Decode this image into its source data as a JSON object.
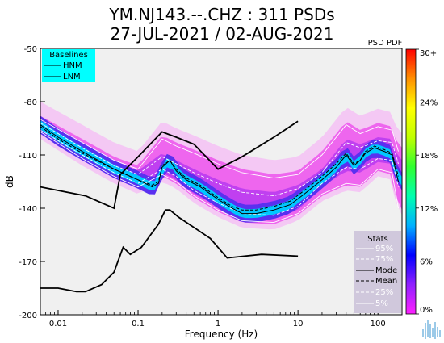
{
  "header": {
    "title": "YM.NJ143.--.CHZ : 311 PSDs",
    "subtitle": "27-JUL-2021 / 02-AUG-2021"
  },
  "chart_data": {
    "type": "line",
    "title": "YM.NJ143.--.CHZ : 311 PSDs",
    "subtitle": "27-JUL-2021 / 02-AUG-2021",
    "xlabel": "Frequency (Hz)",
    "ylabel": "dB",
    "xscale": "log",
    "xlim": [
      0.006,
      200
    ],
    "ylim": [
      -200,
      -50
    ],
    "xticks": [
      0.01,
      0.1,
      1,
      10,
      100
    ],
    "xtick_labels": [
      "0.01",
      "0.1",
      "1",
      "10",
      "100"
    ],
    "yticks": [
      -200,
      -170,
      -140,
      -110,
      -80,
      -50
    ],
    "ytick_labels": [
      "-200",
      "-170",
      "-140",
      "-110",
      "-80",
      "-50"
    ],
    "colorbar": {
      "title": "PSD PDF",
      "tick_labels": [
        "0%",
        "6%",
        "12%",
        "18%",
        "24%",
        "30+"
      ],
      "ticks": [
        0,
        6,
        12,
        18,
        24,
        30
      ],
      "colors": [
        "#ff20ff",
        "#9020ff",
        "#0000ff",
        "#00b0ff",
        "#00ffb0",
        "#30ff30",
        "#c0ff00",
        "#ffff00",
        "#ff9000",
        "#ff0000"
      ]
    },
    "baselines_legend": {
      "title": "Baselines",
      "entries": [
        "HNM",
        "LNM"
      ],
      "color": "#00ffff"
    },
    "stats_legend": {
      "title": "Stats",
      "entries": [
        "95%",
        "75%",
        "Mode",
        "Mean",
        "25%",
        "5%"
      ],
      "color": "#d0c8dc"
    },
    "series": [
      {
        "name": "HNM",
        "color": "#000000",
        "x": [
          0.006,
          0.01,
          0.022,
          0.05,
          0.06,
          0.1,
          0.2,
          0.3,
          0.5,
          1.0,
          2.0,
          5.0,
          10.0
        ],
        "y": [
          -128,
          -130,
          -133,
          -140,
          -121,
          -111,
          -97,
          -100,
          -104,
          -118,
          -111,
          -100,
          -91
        ]
      },
      {
        "name": "LNM",
        "color": "#000000",
        "x": [
          0.006,
          0.01,
          0.017,
          0.022,
          0.035,
          0.05,
          0.065,
          0.08,
          0.11,
          0.18,
          0.22,
          0.25,
          0.32,
          0.8,
          1.3,
          3.5,
          10.0
        ],
        "y": [
          -185,
          -185,
          -187,
          -187,
          -183,
          -176,
          -162,
          -166,
          -162,
          -149,
          -141,
          -141,
          -145,
          -157,
          -168,
          -166,
          -167
        ]
      },
      {
        "name": "Mode",
        "color": "#000000",
        "x": [
          0.006,
          0.01,
          0.02,
          0.05,
          0.1,
          0.15,
          0.18,
          0.2,
          0.25,
          0.3,
          0.4,
          0.6,
          1,
          1.5,
          2,
          3,
          5,
          8,
          12,
          20,
          30,
          40,
          50,
          60,
          70,
          90,
          120,
          150,
          180
        ],
        "y": [
          -93,
          -100,
          -108,
          -118,
          -124,
          -128,
          -126,
          -117,
          -113,
          -119,
          -124,
          -128,
          -135,
          -140,
          -143,
          -143,
          -141,
          -138,
          -132,
          -124,
          -117,
          -110,
          -116,
          -113,
          -109,
          -106,
          -108,
          -110,
          -125
        ]
      },
      {
        "name": "Mean",
        "color": "#000000",
        "x": [
          0.006,
          0.01,
          0.02,
          0.05,
          0.1,
          0.15,
          0.18,
          0.2,
          0.25,
          0.3,
          0.4,
          0.6,
          1,
          1.5,
          2,
          3,
          5,
          8,
          12,
          20,
          30,
          40,
          50,
          60,
          70,
          90,
          120,
          150,
          180
        ],
        "y": [
          -94,
          -101,
          -109,
          -118,
          -124,
          -127,
          -125,
          -116,
          -113,
          -118,
          -123,
          -127,
          -134,
          -139,
          -141,
          -141,
          -139,
          -136,
          -130,
          -122,
          -115,
          -109,
          -115,
          -113,
          -108,
          -105,
          -107,
          -109,
          -122
        ]
      },
      {
        "name": "95%",
        "color": "#ffffff",
        "x": [
          0.006,
          0.02,
          0.05,
          0.1,
          0.2,
          0.3,
          0.5,
          1,
          2,
          5,
          10,
          20,
          40,
          60,
          100,
          150,
          180
        ],
        "y": [
          -90,
          -103,
          -113,
          -118,
          -101,
          -105,
          -109,
          -115,
          -120,
          -123,
          -121,
          -110,
          -93,
          -98,
          -94,
          -96,
          -108
        ]
      },
      {
        "name": "75%",
        "color": "#ffffff",
        "x": [
          0.006,
          0.02,
          0.05,
          0.1,
          0.2,
          0.3,
          0.5,
          1,
          2,
          5,
          10,
          20,
          40,
          60,
          100,
          150,
          180
        ],
        "y": [
          -92,
          -106,
          -116,
          -121,
          -111,
          -115,
          -120,
          -126,
          -131,
          -133,
          -129,
          -120,
          -103,
          -106,
          -102,
          -103,
          -115
        ]
      },
      {
        "name": "25%",
        "color": "#ffffff",
        "x": [
          0.006,
          0.02,
          0.05,
          0.1,
          0.2,
          0.3,
          0.5,
          1,
          2,
          5,
          10,
          20,
          40,
          60,
          100,
          150,
          180
        ],
        "y": [
          -96,
          -110,
          -120,
          -126,
          -118,
          -122,
          -130,
          -137,
          -143,
          -144,
          -139,
          -126,
          -117,
          -118,
          -112,
          -113,
          -128
        ]
      },
      {
        "name": "5%",
        "color": "#ffffff",
        "x": [
          0.006,
          0.02,
          0.05,
          0.1,
          0.2,
          0.3,
          0.5,
          1,
          2,
          5,
          10,
          20,
          40,
          60,
          100,
          150,
          180
        ],
        "y": [
          -97,
          -112,
          -122,
          -128,
          -121,
          -125,
          -133,
          -141,
          -147,
          -148,
          -143,
          -132,
          -126,
          -127,
          -118,
          -120,
          -140
        ]
      }
    ]
  }
}
